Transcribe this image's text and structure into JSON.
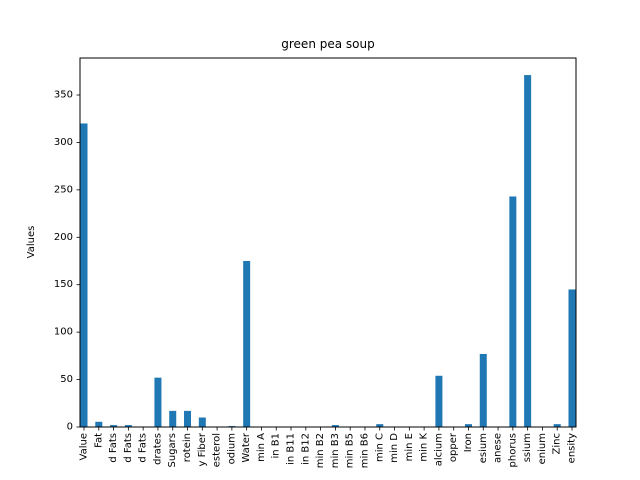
{
  "chart_data": {
    "type": "bar",
    "title": "green pea soup",
    "xlabel": "",
    "ylabel": "Values",
    "ylim": [
      0,
      389
    ],
    "yticks": [
      0,
      50,
      100,
      150,
      200,
      250,
      300,
      350
    ],
    "grid": false,
    "bar_color": "#1f77b4",
    "categories": [
      "Value",
      "Fat",
      "d Fats",
      "d Fats",
      "d Fats",
      "drates",
      "Sugars",
      "rotein",
      "y Fiber",
      "esterol",
      "odium",
      "Water",
      "min A",
      "in B1",
      "in B11",
      "in B12",
      "min B2",
      "min B3",
      "min B5",
      "min B6",
      "min C",
      "min D",
      "min E",
      "min K",
      "alcium",
      "opper",
      "Iron",
      "esium",
      "anese",
      "phorus",
      "ssium",
      "enium",
      "Zinc",
      "ensity"
    ],
    "values": [
      320,
      5.5,
      2.0,
      2.0,
      0.0,
      52,
      17,
      17,
      10,
      0.0,
      1.0,
      175,
      0.0,
      0.1,
      0.0,
      0.0,
      0.1,
      2.0,
      0.3,
      0.1,
      3.0,
      0.0,
      0.1,
      0.5,
      54,
      0.1,
      3.0,
      77,
      0.5,
      243,
      371,
      0.0,
      3.0,
      145
    ]
  }
}
